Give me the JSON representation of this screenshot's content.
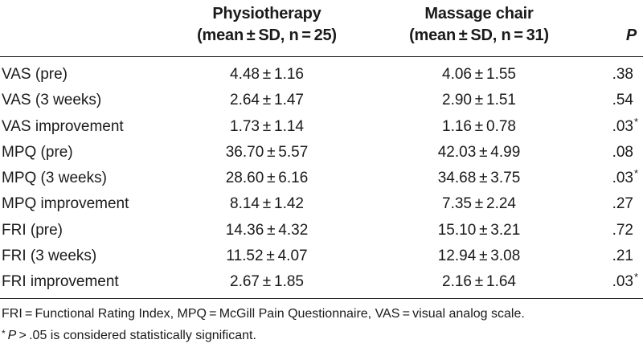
{
  "table": {
    "headers": {
      "col1_line1": "Physiotherapy",
      "col1_line2": "(mean ± SD, n = 25)",
      "col2_line1": "Massage chair",
      "col2_line2": "(mean ± SD, n = 31)",
      "col3": "P"
    },
    "rows": [
      {
        "label": "VAS (pre)",
        "physio": "4.48 ± 1.16",
        "massage": "4.06 ± 1.55",
        "p": ".38",
        "mark": ""
      },
      {
        "label": "VAS (3 weeks)",
        "physio": "2.64 ± 1.47",
        "massage": "2.90 ± 1.51",
        "p": ".54",
        "mark": ""
      },
      {
        "label": "VAS improvement",
        "physio": "1.73 ± 1.14",
        "massage": "1.16 ± 0.78",
        "p": ".03",
        "mark": "*"
      },
      {
        "label": "MPQ (pre)",
        "physio": "36.70 ± 5.57",
        "massage": "42.03 ± 4.99",
        "p": ".08",
        "mark": ""
      },
      {
        "label": "MPQ (3 weeks)",
        "physio": "28.60 ± 6.16",
        "massage": "34.68 ± 3.75",
        "p": ".03",
        "mark": "*"
      },
      {
        "label": "MPQ improvement",
        "physio": "8.14 ± 1.42",
        "massage": "7.35 ± 2.24",
        "p": ".27",
        "mark": ""
      },
      {
        "label": "FRI (pre)",
        "physio": "14.36 ± 4.32",
        "massage": "15.10 ± 3.21",
        "p": ".72",
        "mark": ""
      },
      {
        "label": "FRI (3 weeks)",
        "physio": "11.52 ± 4.07",
        "massage": "12.94 ± 3.08",
        "p": ".21",
        "mark": ""
      },
      {
        "label": "FRI improvement",
        "physio": "2.67 ± 1.85",
        "massage": "2.16 ± 1.64",
        "p": ".03",
        "mark": "*"
      }
    ]
  },
  "footnotes": {
    "abbreviations": "FRI = Functional Rating Index, MPQ = McGill Pain Questionnaire, VAS = visual analog scale.",
    "significance_mark": "*",
    "significance_p": "P",
    "significance_rest": " > .05 is considered statistically significant."
  }
}
